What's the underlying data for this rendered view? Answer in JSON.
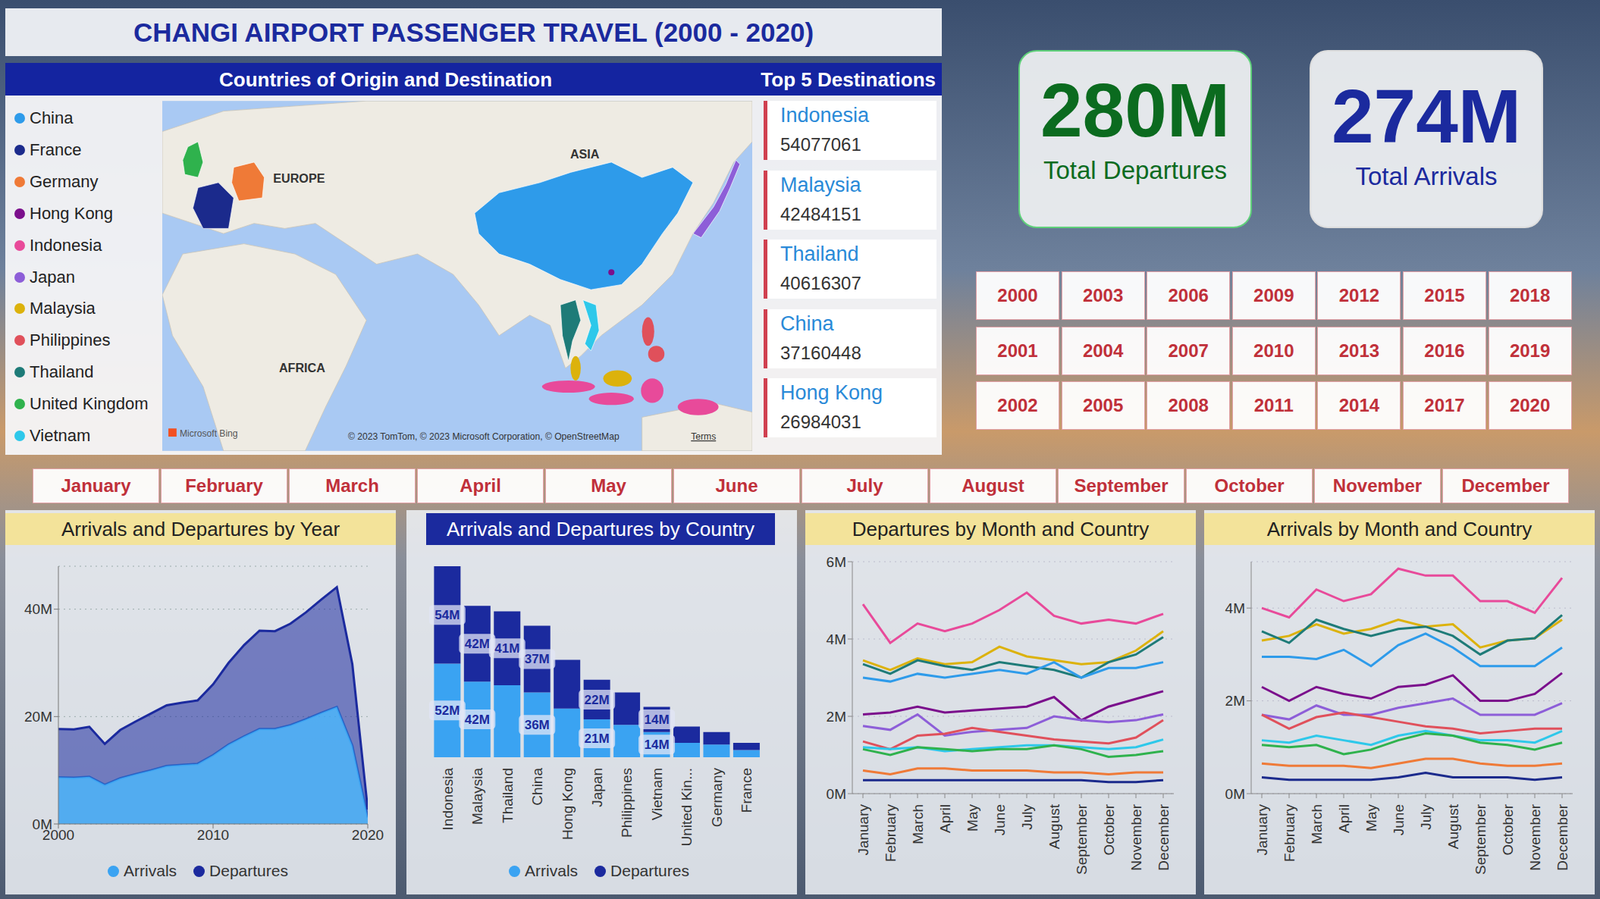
{
  "title": "CHANGI AIRPORT PASSENGER TRAVEL (2000 - 2020)",
  "map": {
    "title": "Countries of Origin and Destination",
    "top_title": "Top 5 Destinations",
    "countries": [
      {
        "name": "China",
        "color": "#2e9bea"
      },
      {
        "name": "France",
        "color": "#1b2a8c"
      },
      {
        "name": "Germany",
        "color": "#ef7a37"
      },
      {
        "name": "Hong Kong",
        "color": "#7b0f8c"
      },
      {
        "name": "Indonesia",
        "color": "#e84a9a"
      },
      {
        "name": "Japan",
        "color": "#8d5ed8"
      },
      {
        "name": "Malaysia",
        "color": "#dcb20c"
      },
      {
        "name": "Philippines",
        "color": "#e0505b"
      },
      {
        "name": "Thailand",
        "color": "#1e7b78"
      },
      {
        "name": "United Kingdom",
        "color": "#2fb24d"
      },
      {
        "name": "Vietnam",
        "color": "#2ec8ea"
      }
    ],
    "labels": [
      "ASIA",
      "EUROPE",
      "AFRICA"
    ],
    "provider": "Microsoft Bing",
    "attribution": "© 2023 TomTom, © 2023 Microsoft Corporation, © OpenStreetMap",
    "terms": "Terms"
  },
  "top_destinations": [
    {
      "name": "Indonesia",
      "value": 54077061
    },
    {
      "name": "Malaysia",
      "value": 42484151
    },
    {
      "name": "Thailand",
      "value": 40616307
    },
    {
      "name": "China",
      "value": 37160448
    },
    {
      "name": "Hong Kong",
      "value": 26984031
    }
  ],
  "kpis": [
    {
      "value": "280M",
      "label": "Total Departures",
      "color": "#0b6b1f"
    },
    {
      "value": "274M",
      "label": "Total Arrivals",
      "color": "#1b2a9e"
    }
  ],
  "years": [
    2000,
    2001,
    2002,
    2003,
    2004,
    2005,
    2006,
    2007,
    2008,
    2009,
    2010,
    2011,
    2012,
    2013,
    2014,
    2015,
    2016,
    2017,
    2018,
    2019,
    2020
  ],
  "months": [
    "January",
    "February",
    "March",
    "April",
    "May",
    "June",
    "July",
    "August",
    "September",
    "October",
    "November",
    "December"
  ],
  "chart_data": [
    {
      "type": "area",
      "title": "Arrivals and Departures by Year",
      "stacked": true,
      "grid": true,
      "legend": "bottom",
      "x": [
        2000,
        2001,
        2002,
        2003,
        2004,
        2005,
        2006,
        2007,
        2008,
        2009,
        2010,
        2011,
        2012,
        2013,
        2014,
        2015,
        2016,
        2017,
        2018,
        2019,
        2020
      ],
      "xlim": [
        2000,
        2020
      ],
      "xticks": [
        2000,
        2010,
        2020
      ],
      "ylim": [
        0,
        48
      ],
      "yticks": [
        {
          "value": 0,
          "label": "0M"
        },
        {
          "value": 20,
          "label": "20M"
        },
        {
          "value": 40,
          "label": "40M"
        }
      ],
      "series": [
        {
          "name": "Arrivals",
          "color": "#3aa3f2",
          "values": [
            8.7,
            8.6,
            8.8,
            7.3,
            8.5,
            9.3,
            10.0,
            10.8,
            11.0,
            11.2,
            12.8,
            14.8,
            16.3,
            17.7,
            17.7,
            18.4,
            19.5,
            20.7,
            21.8,
            14.6,
            1.2
          ]
        },
        {
          "name": "Departures",
          "color": "#1b2a9e",
          "values": [
            9.0,
            9.0,
            9.3,
            7.6,
            9.0,
            9.8,
            10.6,
            11.3,
            11.6,
            11.8,
            13.2,
            15.2,
            17.0,
            18.3,
            18.2,
            18.9,
            19.9,
            21.1,
            22.3,
            15.2,
            1.5
          ]
        }
      ]
    },
    {
      "type": "bar",
      "title": "Arrivals and Departures by Country",
      "stacked": true,
      "data_labels": true,
      "tick_labels": "x",
      "legend": "bottom",
      "categories": [
        "Indonesia",
        "Malaysia",
        "Thailand",
        "China",
        "Hong Kong",
        "Japan",
        "Philippines",
        "Vietnam",
        "United Kin...",
        "Germany",
        "France"
      ],
      "series": [
        {
          "name": "Arrivals",
          "color": "#3aa3f2",
          "values": [
            52,
            42,
            40,
            36,
            27,
            21,
            18,
            14,
            8,
            7,
            4
          ],
          "value_labels": [
            "52M",
            "42M",
            null,
            "36M",
            null,
            "21M",
            null,
            "14M",
            null,
            null,
            null
          ]
        },
        {
          "name": "Departures",
          "color": "#1b2a9e",
          "values": [
            54,
            42,
            41,
            37,
            27,
            22,
            18,
            14,
            9,
            7,
            4
          ],
          "value_labels": [
            "54M",
            "42M",
            "41M",
            "37M",
            null,
            "22M",
            null,
            "14M",
            null,
            null,
            null
          ]
        }
      ]
    },
    {
      "type": "line",
      "title": "Departures by Month and Country",
      "grid": true,
      "categories": [
        "January",
        "February",
        "March",
        "April",
        "May",
        "June",
        "July",
        "August",
        "September",
        "October",
        "November",
        "December"
      ],
      "ylim": [
        0,
        6
      ],
      "yticks": [
        {
          "value": 0,
          "label": "0M"
        },
        {
          "value": 2,
          "label": "2M"
        },
        {
          "value": 4,
          "label": "4M"
        },
        {
          "value": 6,
          "label": "6M"
        }
      ],
      "series": [
        {
          "name": "Indonesia",
          "color": "#e84a9a",
          "values": [
            4.9,
            3.9,
            4.4,
            4.2,
            4.4,
            4.75,
            5.2,
            4.6,
            4.4,
            4.5,
            4.4,
            4.65
          ]
        },
        {
          "name": "Malaysia",
          "color": "#dcb20c",
          "values": [
            3.45,
            3.2,
            3.5,
            3.35,
            3.4,
            3.8,
            3.55,
            3.45,
            3.35,
            3.4,
            3.7,
            4.2
          ]
        },
        {
          "name": "Thailand",
          "color": "#1e7b78",
          "values": [
            3.35,
            3.1,
            3.45,
            3.3,
            3.2,
            3.4,
            3.3,
            3.2,
            3.0,
            3.4,
            3.6,
            4.05
          ]
        },
        {
          "name": "China",
          "color": "#2e9bea",
          "values": [
            3.0,
            2.9,
            3.1,
            3.0,
            3.1,
            3.2,
            3.1,
            3.4,
            3.0,
            3.25,
            3.25,
            3.4
          ]
        },
        {
          "name": "Hong Kong",
          "color": "#7b0f8c",
          "values": [
            2.05,
            2.1,
            2.25,
            2.1,
            2.15,
            2.2,
            2.25,
            2.5,
            1.9,
            2.25,
            2.45,
            2.65
          ]
        },
        {
          "name": "Japan",
          "color": "#8d5ed8",
          "values": [
            1.75,
            1.65,
            2.05,
            1.5,
            1.6,
            1.65,
            1.7,
            2.0,
            1.9,
            1.85,
            1.9,
            2.05
          ]
        },
        {
          "name": "Philippines",
          "color": "#e0505b",
          "values": [
            1.35,
            1.15,
            1.5,
            1.55,
            1.7,
            1.6,
            1.5,
            1.4,
            1.35,
            1.3,
            1.45,
            1.9
          ]
        },
        {
          "name": "Vietnam",
          "color": "#2ec8ea",
          "values": [
            1.2,
            1.15,
            1.2,
            1.1,
            1.15,
            1.2,
            1.25,
            1.25,
            1.2,
            1.15,
            1.2,
            1.4
          ]
        },
        {
          "name": "United Kingdom",
          "color": "#2fb24d",
          "values": [
            1.15,
            1.0,
            1.2,
            1.15,
            1.1,
            1.15,
            1.15,
            1.25,
            1.15,
            0.95,
            1.0,
            1.1
          ]
        },
        {
          "name": "Germany",
          "color": "#ef7a37",
          "values": [
            0.6,
            0.5,
            0.65,
            0.65,
            0.6,
            0.6,
            0.6,
            0.55,
            0.55,
            0.5,
            0.55,
            0.55
          ]
        },
        {
          "name": "France",
          "color": "#1b2a8c",
          "values": [
            0.35,
            0.35,
            0.35,
            0.35,
            0.35,
            0.35,
            0.35,
            0.35,
            0.35,
            0.3,
            0.3,
            0.35
          ]
        }
      ]
    },
    {
      "type": "line",
      "title": "Arrivals by Month and Country",
      "grid": true,
      "categories": [
        "January",
        "February",
        "March",
        "April",
        "May",
        "June",
        "July",
        "August",
        "September",
        "October",
        "November",
        "December"
      ],
      "ylim": [
        0,
        5
      ],
      "yticks": [
        {
          "value": 0,
          "label": "0M"
        },
        {
          "value": 2,
          "label": "2M"
        },
        {
          "value": 4,
          "label": "4M"
        }
      ],
      "series": [
        {
          "name": "Indonesia",
          "color": "#e84a9a",
          "values": [
            4.0,
            3.8,
            4.4,
            4.15,
            4.3,
            4.85,
            4.7,
            4.7,
            4.15,
            4.15,
            3.9,
            4.65
          ]
        },
        {
          "name": "Malaysia",
          "color": "#dcb20c",
          "values": [
            3.3,
            3.4,
            3.65,
            3.45,
            3.55,
            3.75,
            3.6,
            3.65,
            3.15,
            3.3,
            3.35,
            3.75
          ]
        },
        {
          "name": "Thailand",
          "color": "#1e7b78",
          "values": [
            3.5,
            3.25,
            3.75,
            3.55,
            3.4,
            3.55,
            3.6,
            3.4,
            3.0,
            3.3,
            3.35,
            3.85
          ]
        },
        {
          "name": "China",
          "color": "#2e9bea",
          "values": [
            2.95,
            2.95,
            2.9,
            3.1,
            2.75,
            3.2,
            3.45,
            3.15,
            2.75,
            2.75,
            2.75,
            3.15
          ]
        },
        {
          "name": "Hong Kong",
          "color": "#7b0f8c",
          "values": [
            2.3,
            2.0,
            2.3,
            2.15,
            2.05,
            2.3,
            2.35,
            2.55,
            2.0,
            2.0,
            2.15,
            2.6
          ]
        },
        {
          "name": "Japan",
          "color": "#8d5ed8",
          "values": [
            1.7,
            1.6,
            1.9,
            1.7,
            1.7,
            1.85,
            1.95,
            2.05,
            1.7,
            1.7,
            1.7,
            1.95
          ]
        },
        {
          "name": "Philippines",
          "color": "#e0505b",
          "values": [
            1.7,
            1.4,
            1.65,
            1.75,
            1.65,
            1.55,
            1.45,
            1.4,
            1.3,
            1.35,
            1.4,
            1.4
          ]
        },
        {
          "name": "Vietnam",
          "color": "#2ec8ea",
          "values": [
            1.15,
            1.1,
            1.25,
            1.15,
            1.05,
            1.25,
            1.35,
            1.25,
            1.15,
            1.15,
            1.1,
            1.35
          ]
        },
        {
          "name": "United Kingdom",
          "color": "#2fb24d",
          "values": [
            1.05,
            1.0,
            1.05,
            0.85,
            0.95,
            1.15,
            1.3,
            1.25,
            1.1,
            1.05,
            0.95,
            1.1
          ]
        },
        {
          "name": "Germany",
          "color": "#ef7a37",
          "values": [
            0.65,
            0.6,
            0.6,
            0.6,
            0.55,
            0.65,
            0.75,
            0.75,
            0.65,
            0.6,
            0.6,
            0.65
          ]
        },
        {
          "name": "France",
          "color": "#1b2a8c",
          "values": [
            0.35,
            0.3,
            0.3,
            0.3,
            0.3,
            0.35,
            0.45,
            0.35,
            0.35,
            0.35,
            0.3,
            0.35
          ]
        }
      ]
    }
  ]
}
